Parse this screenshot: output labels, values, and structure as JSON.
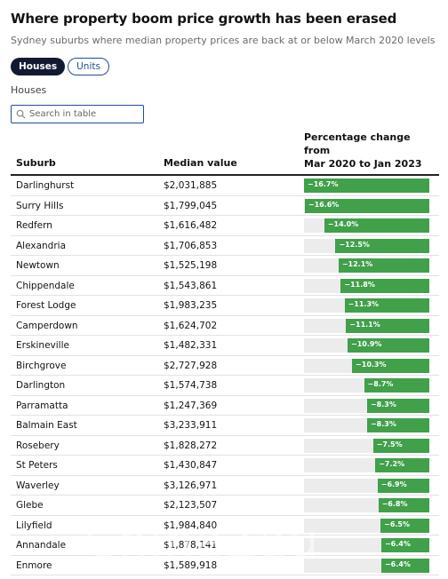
{
  "header": {
    "title": "Where property boom price growth has been erased",
    "subtitle": "Sydney suburbs where median property prices are back at or below March 2020 levels"
  },
  "tabs": [
    {
      "label": "Houses",
      "active": true
    },
    {
      "label": "Units",
      "active": false
    }
  ],
  "section_label": "Houses",
  "search": {
    "placeholder": "Search in table",
    "value": ""
  },
  "table": {
    "columns": [
      "Suburb",
      "Median value",
      "Percentage change from\nMar 2020 to Jan 2023"
    ],
    "bar_color": "#41a04a",
    "rows": [
      {
        "suburb": "Darlinghurst",
        "median": "$2,031,885",
        "change": -16.7,
        "label": "−16.7%"
      },
      {
        "suburb": "Surry Hills",
        "median": "$1,799,045",
        "change": -16.6,
        "label": "−16.6%"
      },
      {
        "suburb": "Redfern",
        "median": "$1,616,482",
        "change": -14.0,
        "label": "−14.0%"
      },
      {
        "suburb": "Alexandria",
        "median": "$1,706,853",
        "change": -12.5,
        "label": "−12.5%"
      },
      {
        "suburb": "Newtown",
        "median": "$1,525,198",
        "change": -12.1,
        "label": "−12.1%"
      },
      {
        "suburb": "Chippendale",
        "median": "$1,543,861",
        "change": -11.8,
        "label": "−11.8%"
      },
      {
        "suburb": "Forest Lodge",
        "median": "$1,983,235",
        "change": -11.3,
        "label": "−11.3%"
      },
      {
        "suburb": "Camperdown",
        "median": "$1,624,702",
        "change": -11.1,
        "label": "−11.1%"
      },
      {
        "suburb": "Erskineville",
        "median": "$1,482,331",
        "change": -10.9,
        "label": "−10.9%"
      },
      {
        "suburb": "Birchgrove",
        "median": "$2,727,928",
        "change": -10.3,
        "label": "−10.3%"
      },
      {
        "suburb": "Darlington",
        "median": "$1,574,738",
        "change": -8.7,
        "label": "−8.7%"
      },
      {
        "suburb": "Parramatta",
        "median": "$1,247,369",
        "change": -8.3,
        "label": "−8.3%"
      },
      {
        "suburb": "Balmain East",
        "median": "$3,233,911",
        "change": -8.3,
        "label": "−8.3%"
      },
      {
        "suburb": "Rosebery",
        "median": "$1,828,272",
        "change": -7.5,
        "label": "−7.5%"
      },
      {
        "suburb": "St Peters",
        "median": "$1,430,847",
        "change": -7.2,
        "label": "−7.2%"
      },
      {
        "suburb": "Waverley",
        "median": "$3,126,971",
        "change": -6.9,
        "label": "−6.9%"
      },
      {
        "suburb": "Glebe",
        "median": "$2,123,507",
        "change": -6.8,
        "label": "−6.8%"
      },
      {
        "suburb": "Lilyfield",
        "median": "$1,984,840",
        "change": -6.5,
        "label": "−6.5%"
      },
      {
        "suburb": "Annandale",
        "median": "$1,878,141",
        "change": -6.4,
        "label": "−6.4%"
      },
      {
        "suburb": "Enmore",
        "median": "$1,589,918",
        "change": -6.4,
        "label": "−6.4%"
      }
    ]
  }
}
